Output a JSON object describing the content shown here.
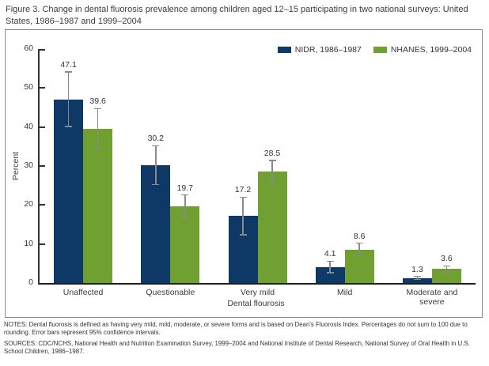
{
  "figure": {
    "title": "Figure 3. Change in dental fluorosis prevalence among children aged 12–15 participating in two national surveys: United States, 1986–1987 and 1999–2004",
    "notes": "NOTES: Dental fluorosis is defined as having very mild, mild, moderate, or severe forms and is based on Dean's Fluorosis Index. Percentages do not sum to 100 due to rounding. Error bars represent 95% confidence intervals.",
    "sources": "SOURCES: CDC/NCHS, National Health and Nutrition Examination Survey, 1999–2004 and National Institute of Dental Research, National Survey of Oral Health in U.S. School Children, 1986–1987."
  },
  "chart_data": {
    "type": "bar",
    "title": "Change in dental fluorosis prevalence among children aged 12–15, NIDR 1986–1987 vs NHANES 1999–2004",
    "categories": [
      "Unaffected",
      "Questionable",
      "Very mild",
      "Mild",
      "Moderate and severe"
    ],
    "series": [
      {
        "name": "NIDR, 1986–1987",
        "color": "#0e3866",
        "values": [
          47.1,
          30.2,
          17.2,
          4.1,
          1.3
        ],
        "ci_low": [
          40.1,
          25.2,
          12.4,
          2.6,
          0.9
        ],
        "ci_high": [
          54.1,
          35.2,
          22.0,
          5.6,
          1.7
        ]
      },
      {
        "name": "NHANES, 1999–2004",
        "color": "#71a032",
        "values": [
          39.6,
          19.7,
          28.5,
          8.6,
          3.6
        ],
        "ci_low": [
          34.5,
          16.8,
          25.6,
          7.0,
          2.8
        ],
        "ci_high": [
          44.7,
          22.6,
          31.4,
          10.2,
          4.4
        ]
      }
    ],
    "xlabel": "Dental flourosis",
    "ylabel": "Percent",
    "ylim": [
      0,
      60
    ],
    "ytick_step": 10,
    "grid": false,
    "legend_position": "top-right",
    "error_bars": "95% confidence intervals",
    "error_bar_color": "#8a8a8a"
  }
}
